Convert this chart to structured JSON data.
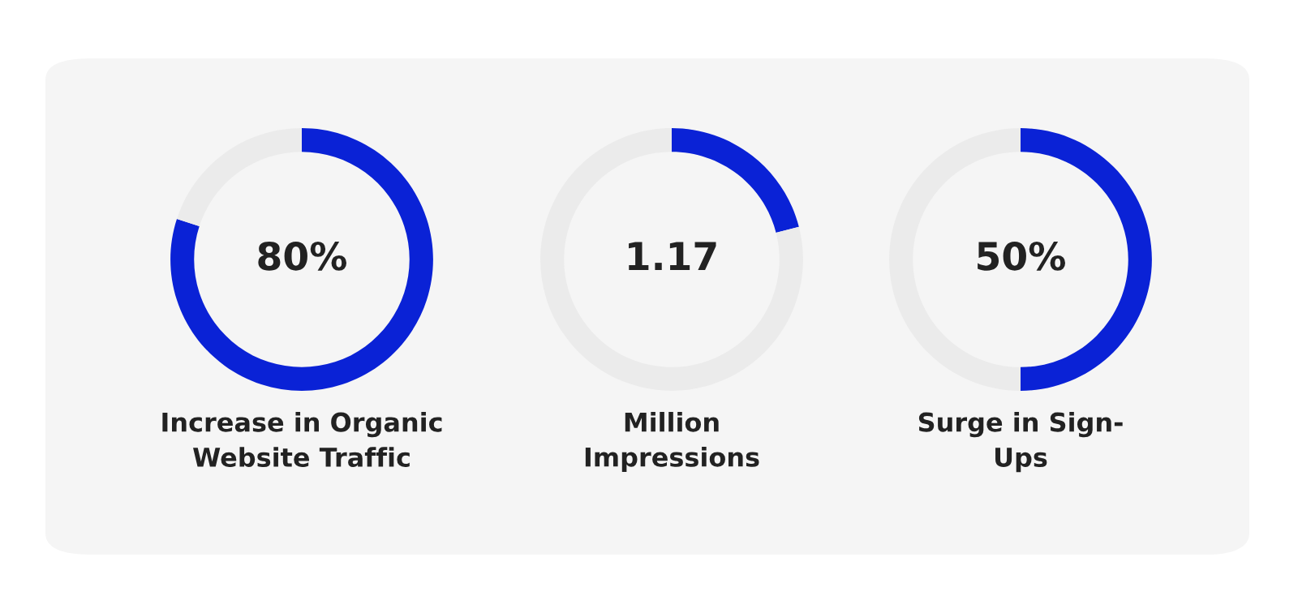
{
  "chart_data": [
    {
      "type": "donut",
      "categories": [
        null,
        null
      ],
      "values": [
        80,
        20
      ],
      "colors": [
        "#0a22d6",
        "#ebebeb"
      ],
      "annotations": [
        "80%"
      ],
      "xlabel": "Increase in Organic\nWebsite Traffic"
    },
    {
      "type": "donut",
      "categories": [
        null,
        null
      ],
      "values": [
        21,
        79
      ],
      "colors": [
        "#0a22d6",
        "#ebebeb"
      ],
      "annotations": [
        "1.17"
      ],
      "xlabel": "Million\nImpressions"
    },
    {
      "type": "donut",
      "categories": [
        null,
        null
      ],
      "values": [
        50,
        50
      ],
      "colors": [
        "#0a22d6",
        "#ebebeb"
      ],
      "annotations": [
        "50%"
      ],
      "xlabel": "Surge in Sign-\nUps"
    }
  ]
}
